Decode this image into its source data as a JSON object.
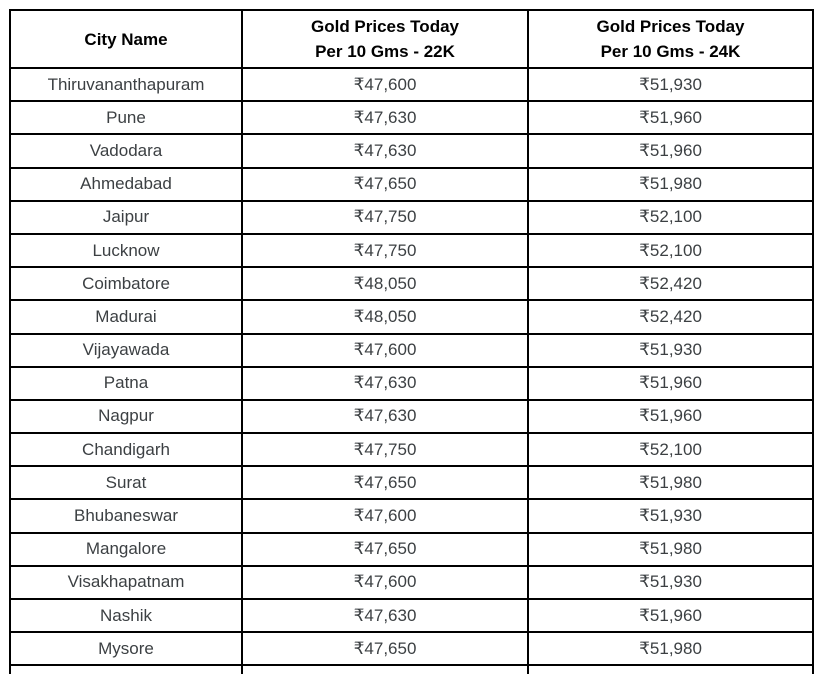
{
  "table": {
    "header": {
      "city": "City Name",
      "col22k_line1": "Gold Prices Today",
      "col22k_line2": "Per 10 Gms - 22K",
      "col24k_line1": "Gold Prices Today",
      "col24k_line2": "Per 10 Gms - 24K"
    },
    "rows": [
      {
        "city": "Thiruvananthapuram",
        "price_22k": "₹47,600",
        "price_24k": "₹51,930"
      },
      {
        "city": "Pune",
        "price_22k": "₹47,630",
        "price_24k": "₹51,960"
      },
      {
        "city": "Vadodara",
        "price_22k": "₹47,630",
        "price_24k": "₹51,960"
      },
      {
        "city": "Ahmedabad",
        "price_22k": "₹47,650",
        "price_24k": "₹51,980"
      },
      {
        "city": "Jaipur",
        "price_22k": "₹47,750",
        "price_24k": "₹52,100"
      },
      {
        "city": "Lucknow",
        "price_22k": "₹47,750",
        "price_24k": "₹52,100"
      },
      {
        "city": "Coimbatore",
        "price_22k": "₹48,050",
        "price_24k": "₹52,420"
      },
      {
        "city": "Madurai",
        "price_22k": "₹48,050",
        "price_24k": "₹52,420"
      },
      {
        "city": "Vijayawada",
        "price_22k": "₹47,600",
        "price_24k": "₹51,930"
      },
      {
        "city": "Patna",
        "price_22k": "₹47,630",
        "price_24k": "₹51,960"
      },
      {
        "city": "Nagpur",
        "price_22k": "₹47,630",
        "price_24k": "₹51,960"
      },
      {
        "city": "Chandigarh",
        "price_22k": "₹47,750",
        "price_24k": "₹52,100"
      },
      {
        "city": "Surat",
        "price_22k": "₹47,650",
        "price_24k": "₹51,980"
      },
      {
        "city": "Bhubaneswar",
        "price_22k": "₹47,600",
        "price_24k": "₹51,930"
      },
      {
        "city": "Mangalore",
        "price_22k": "₹47,650",
        "price_24k": "₹51,980"
      },
      {
        "city": "Visakhapatnam",
        "price_22k": "₹47,600",
        "price_24k": "₹51,930"
      },
      {
        "city": "Nashik",
        "price_22k": "₹47,630",
        "price_24k": "₹51,960"
      },
      {
        "city": "Mysore",
        "price_22k": "₹47,650",
        "price_24k": "₹51,980"
      }
    ],
    "colors": {
      "border": "#000000",
      "header_text": "#000000",
      "body_text": "#3c4043",
      "background": "#ffffff"
    }
  },
  "chart_data": {
    "type": "table",
    "title": "Gold Prices Today Per 10 Gms by City",
    "columns": [
      "City Name",
      "Gold Prices Today Per 10 Gms - 22K",
      "Gold Prices Today Per 10 Gms - 24K"
    ],
    "currency": "INR",
    "cities": [
      "Thiruvananthapuram",
      "Pune",
      "Vadodara",
      "Ahmedabad",
      "Jaipur",
      "Lucknow",
      "Coimbatore",
      "Madurai",
      "Vijayawada",
      "Patna",
      "Nagpur",
      "Chandigarh",
      "Surat",
      "Bhubaneswar",
      "Mangalore",
      "Visakhapatnam",
      "Nashik",
      "Mysore"
    ],
    "series": [
      {
        "name": "Gold Prices Today Per 10 Gms - 22K",
        "values": [
          47600,
          47630,
          47630,
          47650,
          47750,
          47750,
          48050,
          48050,
          47600,
          47630,
          47630,
          47750,
          47650,
          47600,
          47650,
          47600,
          47630,
          47650
        ]
      },
      {
        "name": "Gold Prices Today Per 10 Gms - 24K",
        "values": [
          51930,
          51960,
          51960,
          51980,
          52100,
          52100,
          52420,
          52420,
          51930,
          51960,
          51960,
          52100,
          51980,
          51930,
          51980,
          51930,
          51960,
          51980
        ]
      }
    ]
  }
}
